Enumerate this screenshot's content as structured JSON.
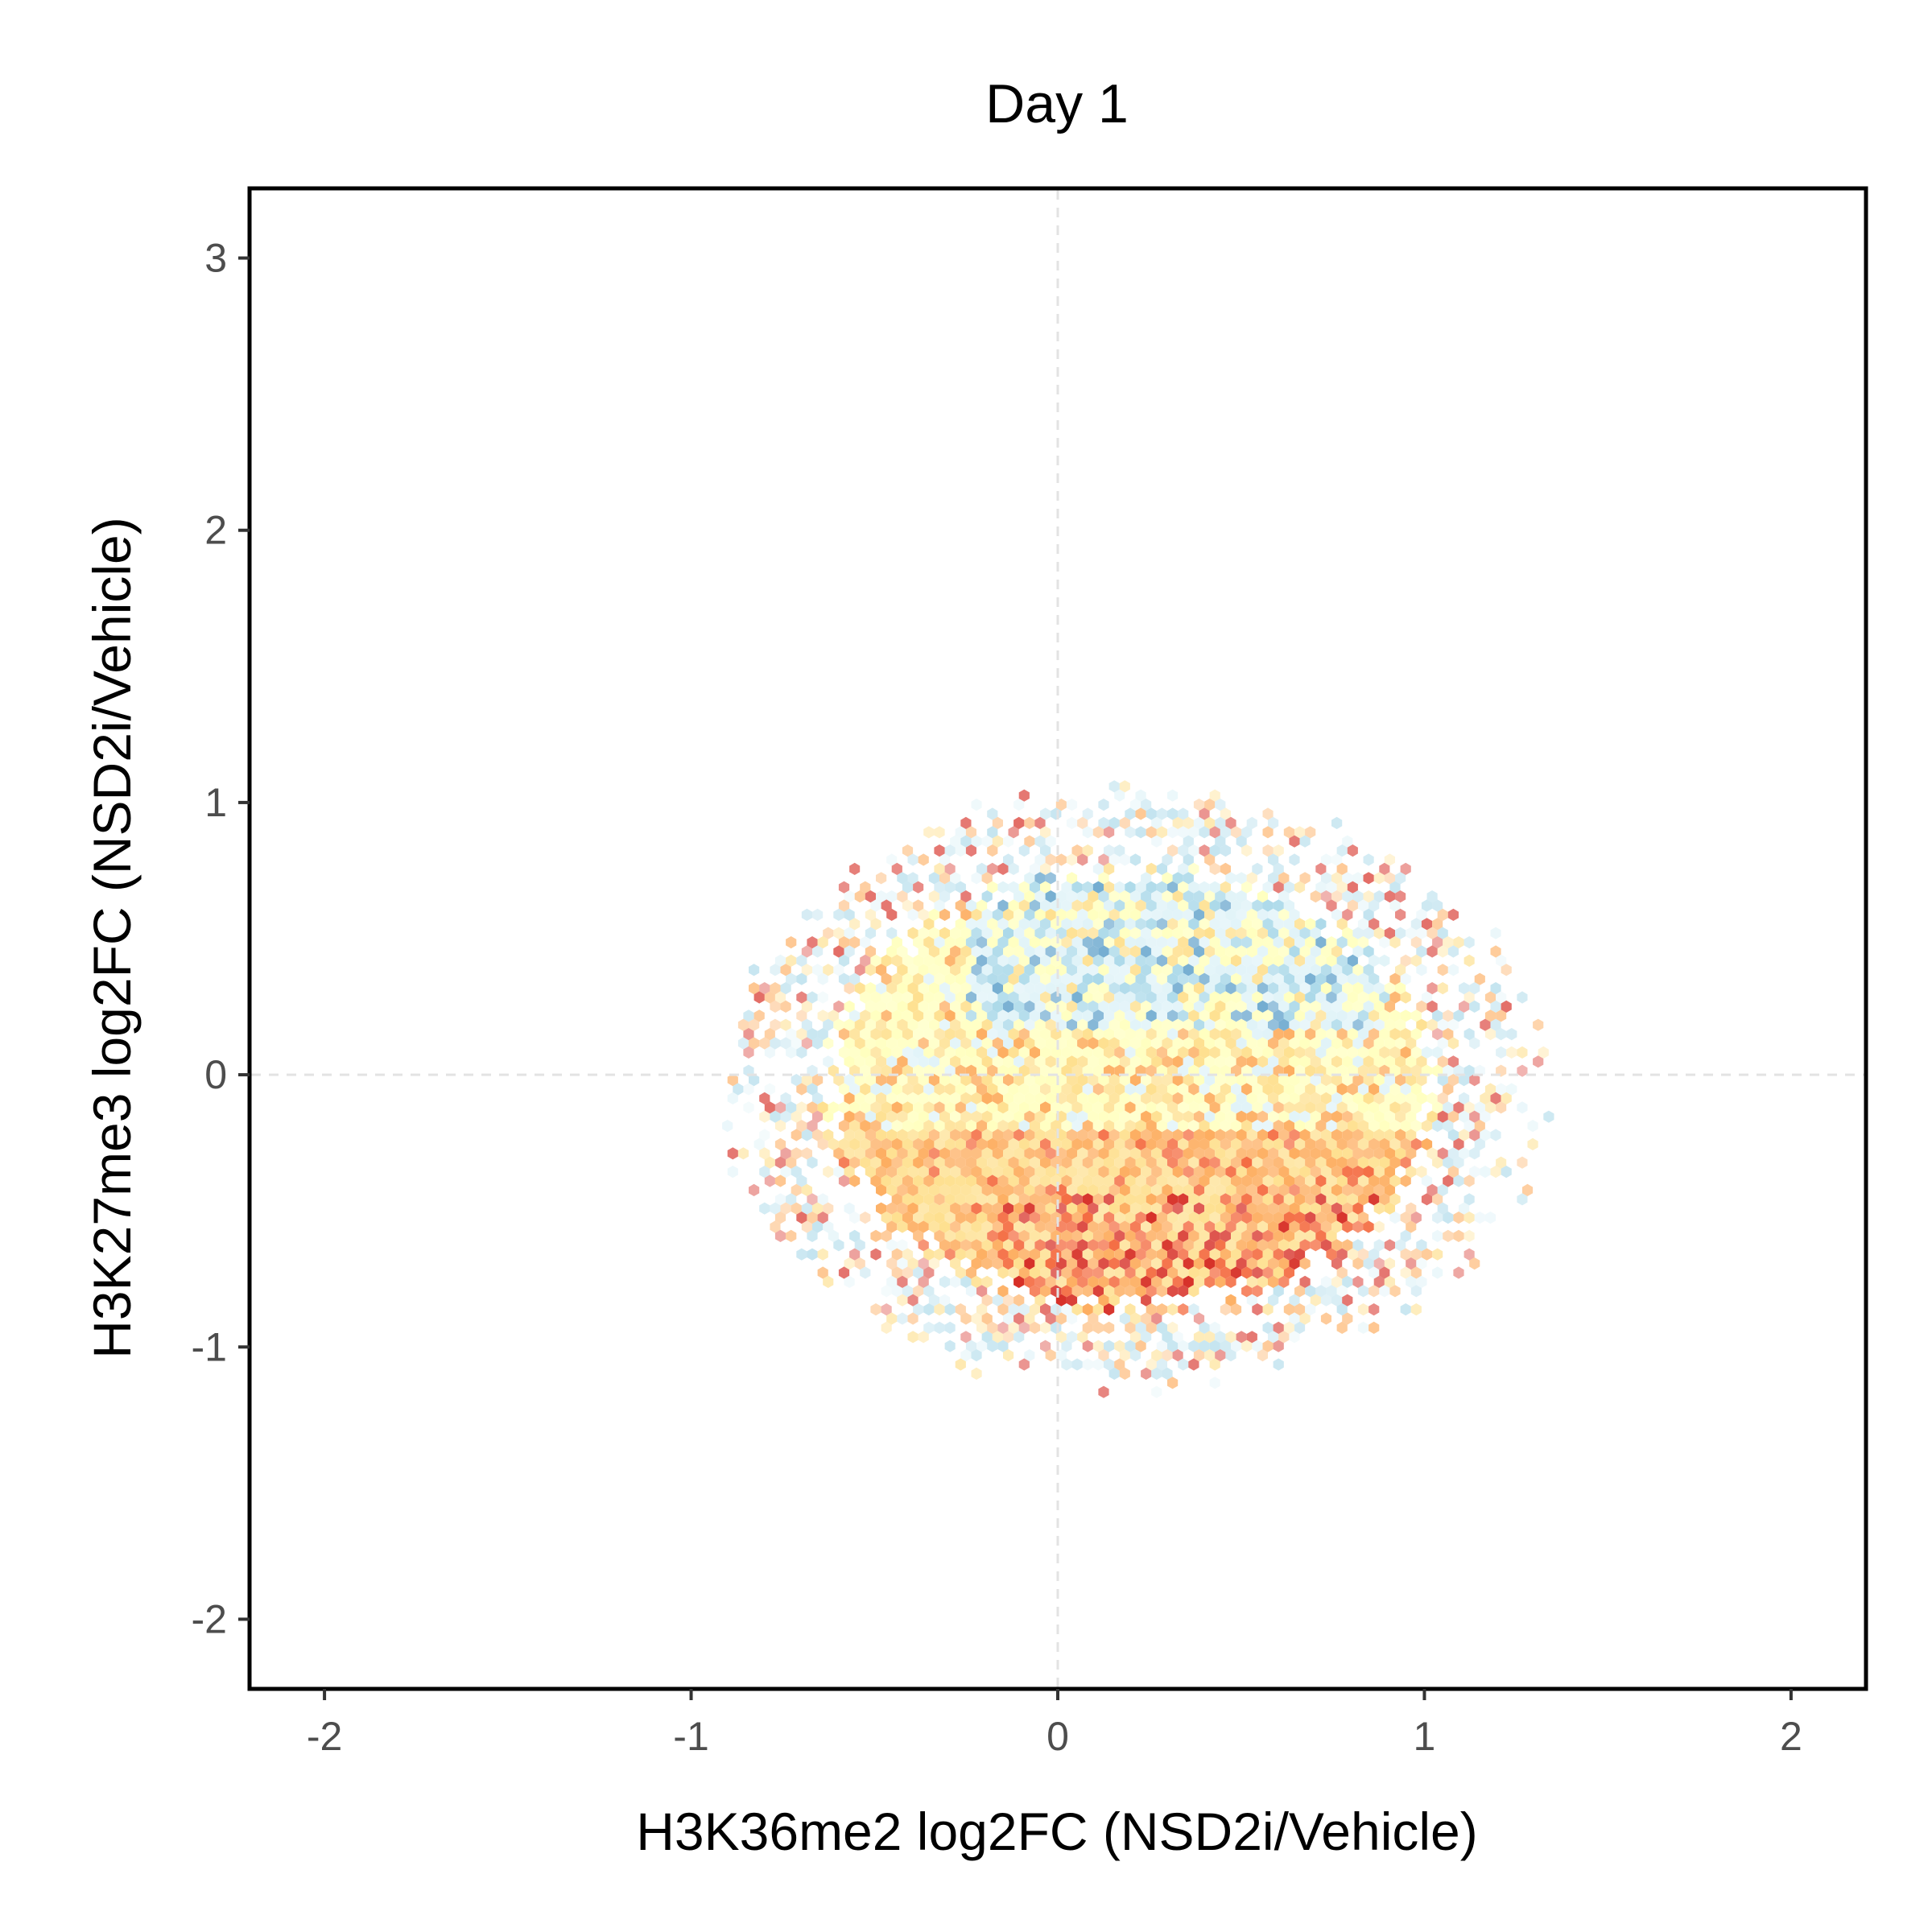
{
  "chart_data": {
    "type": "heatmap",
    "subtype": "hexbin",
    "title": "Day 1",
    "xlabel": "H3K36me2 log2FC (NSD2i/Vehicle)",
    "ylabel": "H3K27me3 log2FC (NSD2i/Vehicle)",
    "xlim": [
      -2.2,
      2.2
    ],
    "ylim": [
      -2.25,
      3.25
    ],
    "x_ticks": [
      -2,
      -1,
      0,
      1,
      2
    ],
    "x_tick_labels": [
      "-2",
      "-1",
      "0",
      "1",
      "2"
    ],
    "y_ticks": [
      -2,
      -1,
      0,
      1,
      2,
      3
    ],
    "y_tick_labels": [
      "-2",
      "-1",
      "0",
      "1",
      "2",
      "3"
    ],
    "reference_lines": {
      "x": 0,
      "y": 0,
      "style": "dashed",
      "color": "#e3e3e3"
    },
    "grid": false,
    "legend": "none",
    "distribution": {
      "center": [
        0.2,
        -0.05
      ],
      "x_range": [
        -1.3,
        1.5
      ],
      "y_range": [
        -1.05,
        1.55
      ],
      "densest_region": {
        "x": [
          0.1,
          0.8
        ],
        "y": [
          -0.75,
          -0.4
        ]
      }
    },
    "colors": [
      "#3a7fba",
      "#74add1",
      "#abd9e9",
      "#e0f3f8",
      "#ffffbf",
      "#fee090",
      "#fdae61",
      "#f46d43",
      "#d73027",
      "#b2182b"
    ]
  }
}
